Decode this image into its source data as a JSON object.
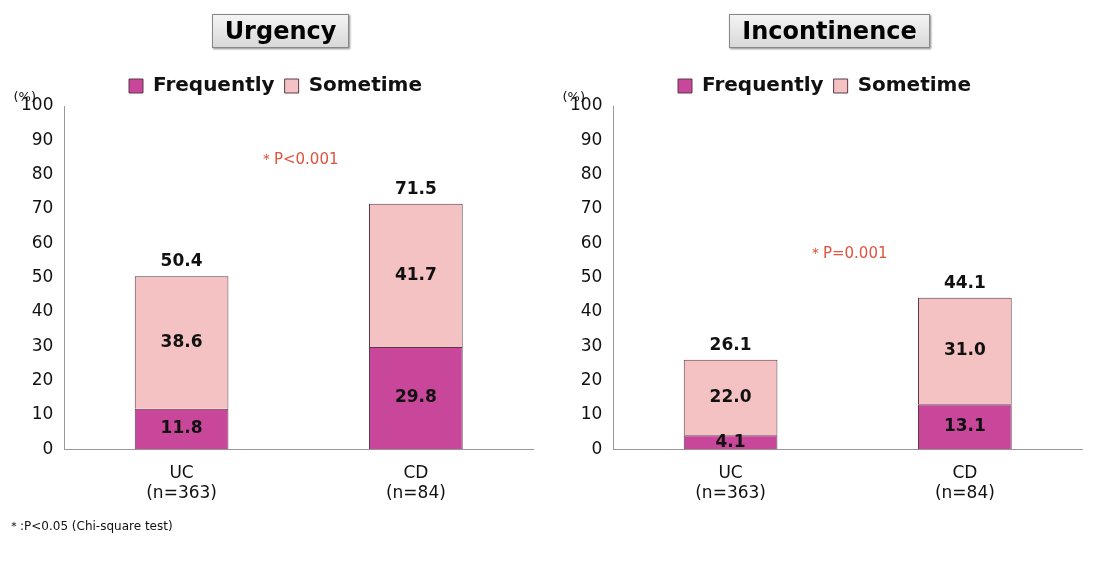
{
  "chart_data": [
    {
      "type": "bar",
      "title": "Urgency",
      "ylabel": "(%)",
      "categories": [
        "UC\n(n=363)",
        "CD\n(n=84)"
      ],
      "stacked": true,
      "series": [
        {
          "name": "Frequently",
          "color": "#c8479b",
          "values": [
            11.8,
            29.8
          ],
          "value_labels": [
            "11.8",
            "29.8"
          ]
        },
        {
          "name": "Sometime",
          "color": "#f4c2c2",
          "values": [
            38.6,
            41.7
          ],
          "value_labels": [
            "38.6",
            "41.7"
          ]
        }
      ],
      "totals": [
        "50.4",
        "71.5"
      ],
      "ylim": [
        0,
        100
      ],
      "yticks": [
        0,
        10,
        20,
        30,
        40,
        50,
        60,
        70,
        80,
        90,
        100
      ],
      "grid": false,
      "legend": "top",
      "annotations": [
        "＊P<0.001",
        "＊:P<0.05 (Chi-square test)"
      ]
    },
    {
      "type": "bar",
      "title": "Incontinence",
      "ylabel": "(%)",
      "categories": [
        "UC\n(n=363)",
        "CD\n(n=84)"
      ],
      "stacked": true,
      "series": [
        {
          "name": "Frequently",
          "color": "#c8479b",
          "values": [
            4.1,
            13.1
          ],
          "value_labels": [
            "4.1",
            "13.1"
          ]
        },
        {
          "name": "Sometime",
          "color": "#f4c2c2",
          "values": [
            22,
            31
          ],
          "value_labels": [
            "22.0",
            "31.0"
          ]
        }
      ],
      "totals": [
        "26.1",
        "44.1"
      ],
      "ylim": [
        0,
        100
      ],
      "yticks": [
        0,
        10,
        20,
        30,
        40,
        50,
        60,
        70,
        80,
        90,
        100
      ],
      "grid": false,
      "legend": "top",
      "annotations": [
        "＊P=0.001"
      ]
    }
  ]
}
